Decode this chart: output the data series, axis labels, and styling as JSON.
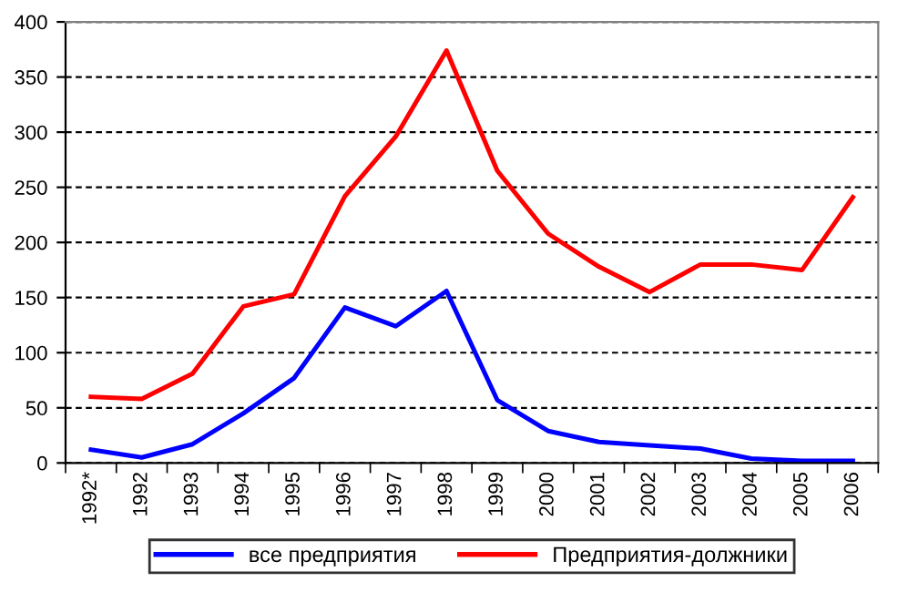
{
  "chart_data": {
    "type": "line",
    "categories": [
      "1992*",
      "1992",
      "1993",
      "1994",
      "1995",
      "1996",
      "1997",
      "1998",
      "1999",
      "2000",
      "2001",
      "2002",
      "2003",
      "2004",
      "2005",
      "2006"
    ],
    "series": [
      {
        "name": "все предприятия",
        "color": "#0000ff",
        "values": [
          12,
          5,
          17,
          45,
          77,
          141,
          124,
          156,
          57,
          29,
          19,
          16,
          13,
          4,
          2,
          2
        ]
      },
      {
        "name": "Предприятия-должники",
        "color": "#ff0000",
        "values": [
          60,
          58,
          81,
          142,
          153,
          242,
          296,
          374,
          265,
          208,
          178,
          155,
          180,
          180,
          175,
          241
        ]
      }
    ],
    "ylim": [
      0,
      400
    ],
    "yticks": [
      0,
      50,
      100,
      150,
      200,
      250,
      300,
      350,
      400
    ],
    "grid": "y",
    "legend": "bottom",
    "marker": "none",
    "line_style": "solid"
  }
}
